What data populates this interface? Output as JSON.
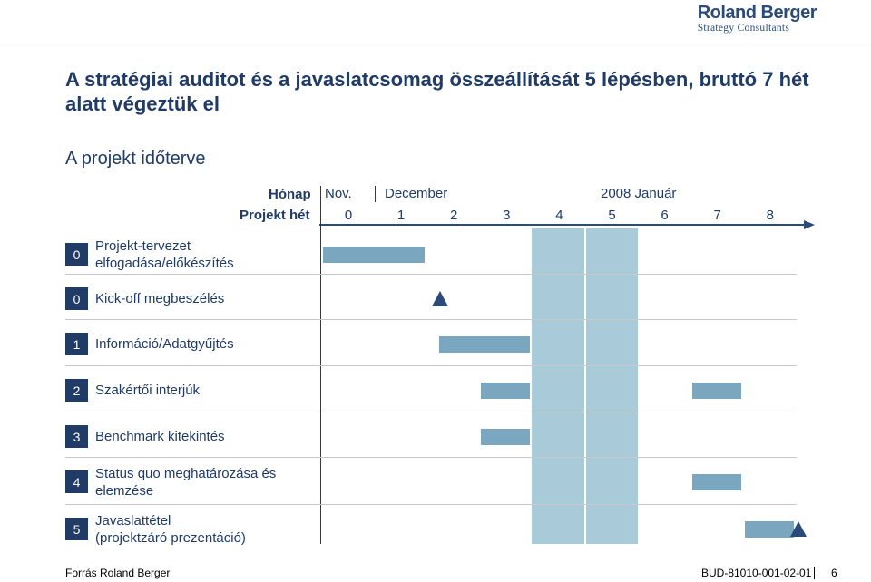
{
  "brand": {
    "name": "Roland Berger",
    "tagline": "Strategy Consultants"
  },
  "title": "A stratégiai auditot és a javaslatcsomag összeállítását 5 lépésben, bruttó 7 hét alatt végeztük el",
  "subtitle": "A projekt időterve",
  "header": {
    "month_label": "Hónap",
    "week_label": "Projekt hét",
    "months": [
      "Nov.",
      "December",
      "2008 Január"
    ],
    "weeks": [
      "0",
      "1",
      "2",
      "3",
      "4",
      "5",
      "6",
      "7",
      "8"
    ]
  },
  "colors": {
    "dark_blue": "#1f3b66",
    "bar": "#7aa7bf",
    "shade": "#a9cad8"
  },
  "shaded_weeks": [
    4,
    5
  ],
  "rows": [
    {
      "num": "0",
      "label_lines": [
        "Projekt-tervezet",
        "elfogadása/előkészítés"
      ],
      "bars": [
        [
          0,
          2
        ]
      ],
      "milestones": []
    },
    {
      "num": "0",
      "label_lines": [
        "Kick-off megbeszélés"
      ],
      "bars": [],
      "milestones": [
        2.25
      ]
    },
    {
      "num": "1",
      "label_lines": [
        "Információ/Adatgyűjtés"
      ],
      "bars": [
        [
          2.2,
          4
        ]
      ],
      "milestones": []
    },
    {
      "num": "2",
      "label_lines": [
        "Szakértői interjúk"
      ],
      "bars": [
        [
          3,
          4
        ],
        [
          7,
          8
        ]
      ],
      "milestones": []
    },
    {
      "num": "3",
      "label_lines": [
        "Benchmark kitekintés"
      ],
      "bars": [
        [
          3,
          4
        ]
      ],
      "milestones": []
    },
    {
      "num": "4",
      "label_lines": [
        "Status quo meghatározása és",
        "elemzése"
      ],
      "bars": [
        [
          7,
          8
        ]
      ],
      "milestones": []
    },
    {
      "num": "5",
      "label_lines": [
        "Javaslattétel",
        "(projektzáró prezentáció)"
      ],
      "bars": [
        [
          8,
          9
        ]
      ],
      "milestones": [
        9.05
      ]
    }
  ],
  "footer": {
    "source": "Forrás Roland Berger",
    "code": "BUD-81010-001-02-01",
    "page": "6"
  }
}
